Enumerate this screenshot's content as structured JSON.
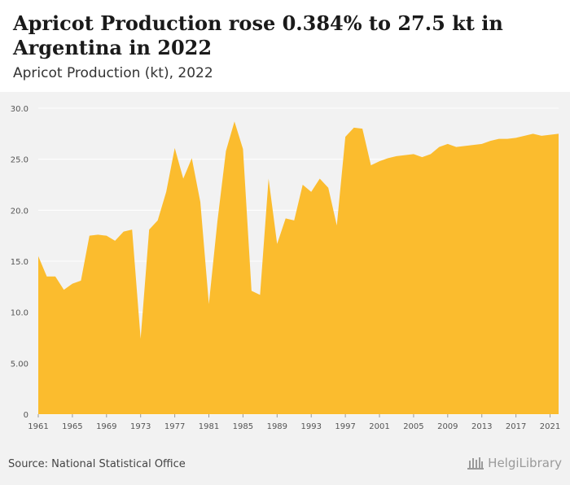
{
  "header": {
    "title": "Apricot Production rose 0.384% to 27.5 kt in Argentina in 2022",
    "subtitle": "Apricot Production (kt), 2022"
  },
  "footer": {
    "source": "Source: National Statistical Office",
    "logo_text": "HelgiLibrary"
  },
  "colors": {
    "area_fill": "#fbbc2e",
    "plot_background": "#f2f2f2",
    "gridline": "#ffffff",
    "tick_text": "#555555"
  },
  "chart_data": {
    "type": "area",
    "title": "Apricot Production rose 0.384% to 27.5 kt in Argentina in 2022",
    "subtitle": "Apricot Production (kt), 2022",
    "xlabel": "",
    "ylabel": "",
    "xlim": [
      1961,
      2022
    ],
    "ylim": [
      0,
      30
    ],
    "grid": true,
    "legend": "none",
    "y_ticks": [
      "0",
      "5.00",
      "10.0",
      "15.0",
      "20.0",
      "25.0",
      "30.0"
    ],
    "y_tick_values": [
      0,
      5,
      10,
      15,
      20,
      25,
      30
    ],
    "x_ticks": [
      "1961",
      "1965",
      "1969",
      "1973",
      "1977",
      "1981",
      "1985",
      "1989",
      "1993",
      "1997",
      "2001",
      "2005",
      "2009",
      "2013",
      "2017",
      "2021"
    ],
    "x_tick_values": [
      1961,
      1965,
      1969,
      1973,
      1977,
      1981,
      1985,
      1989,
      1993,
      1997,
      2001,
      2005,
      2009,
      2013,
      2017,
      2021
    ],
    "x": [
      1961,
      1962,
      1963,
      1964,
      1965,
      1966,
      1967,
      1968,
      1969,
      1970,
      1971,
      1972,
      1973,
      1974,
      1975,
      1976,
      1977,
      1978,
      1979,
      1980,
      1981,
      1982,
      1983,
      1984,
      1985,
      1986,
      1987,
      1988,
      1989,
      1990,
      1991,
      1992,
      1993,
      1994,
      1995,
      1996,
      1997,
      1998,
      1999,
      2000,
      2001,
      2002,
      2003,
      2004,
      2005,
      2006,
      2007,
      2008,
      2009,
      2010,
      2011,
      2012,
      2013,
      2014,
      2015,
      2016,
      2017,
      2018,
      2019,
      2020,
      2021,
      2022
    ],
    "values": [
      15.5,
      13.5,
      13.5,
      12.2,
      12.8,
      13.1,
      17.5,
      17.6,
      17.5,
      17.0,
      17.9,
      18.1,
      7.4,
      18.1,
      19.0,
      21.8,
      26.1,
      23.1,
      25.1,
      20.8,
      10.8,
      18.9,
      25.8,
      28.7,
      26.0,
      12.1,
      11.7,
      23.1,
      16.7,
      19.2,
      19.0,
      22.5,
      21.8,
      23.1,
      22.2,
      18.5,
      27.2,
      28.1,
      28.0,
      24.4,
      24.8,
      25.1,
      25.3,
      25.4,
      25.5,
      25.2,
      25.5,
      26.2,
      26.5,
      26.2,
      26.3,
      26.4,
      26.5,
      26.8,
      27.0,
      27.0,
      27.1,
      27.3,
      27.5,
      27.3,
      27.4,
      27.5
    ]
  }
}
